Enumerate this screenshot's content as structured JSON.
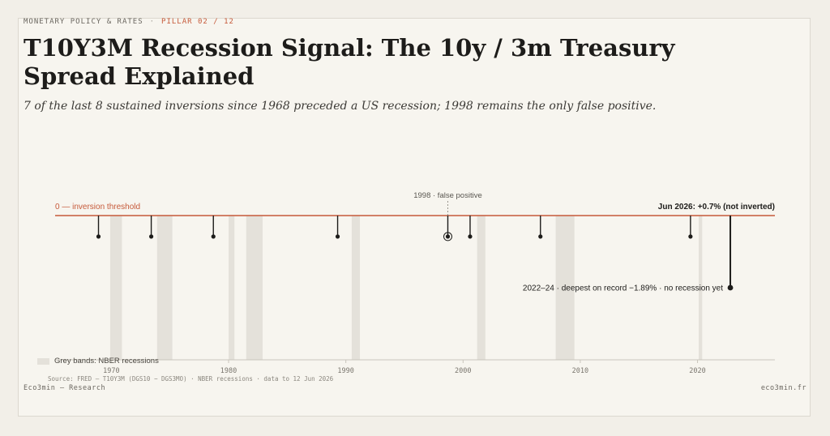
{
  "kicker": {
    "section": "MONETARY POLICY & RATES",
    "separator": "·",
    "pillar": "PILLAR 02 / 12"
  },
  "title": "T10Y3M Recession Signal: The 10y / 3m Treasury Spread Explained",
  "subtitle": "7 of the last 8 sustained inversions since 1968 preceded a US recession; 1998 remains the only false positive.",
  "colors": {
    "accent": "#c65a3a",
    "ink": "#1d1c1a",
    "band": "#e4e1da",
    "axis": "#c9c5bc"
  },
  "chart_data": {
    "type": "line",
    "xlim": [
      1965.2,
      2026.6
    ],
    "ylim": [
      -1.89,
      0
    ],
    "x_ticks": [
      1970,
      1980,
      1990,
      2000,
      2010,
      2020
    ],
    "threshold": {
      "value": 0,
      "label": "0 — inversion threshold"
    },
    "current": {
      "label": "Jun 2026: +0.7% (not inverted)"
    },
    "recessions": [
      [
        1969.9,
        1970.9
      ],
      [
        1973.9,
        1975.2
      ],
      [
        1980.0,
        1980.5
      ],
      [
        1981.5,
        1982.9
      ],
      [
        1990.5,
        1991.2
      ],
      [
        2001.2,
        2001.9
      ],
      [
        2007.9,
        2009.5
      ],
      [
        2020.1,
        2020.4
      ]
    ],
    "inversions": [
      {
        "x": 1968.9,
        "y": -0.55,
        "label": ""
      },
      {
        "x": 1973.4,
        "y": -0.55,
        "label": ""
      },
      {
        "x": 1978.7,
        "y": -0.55,
        "label": ""
      },
      {
        "x": 1989.3,
        "y": -0.55,
        "label": ""
      },
      {
        "x": 1998.7,
        "y": -0.55,
        "label": "1998 · false positive",
        "false_positive": true
      },
      {
        "x": 2000.6,
        "y": -0.55,
        "label": ""
      },
      {
        "x": 2006.6,
        "y": -0.55,
        "label": ""
      },
      {
        "x": 2019.4,
        "y": -0.55,
        "label": ""
      },
      {
        "x": 2022.8,
        "y": -1.89,
        "label": "2022–24 · deepest on record −1.89% · no recession yet"
      }
    ],
    "legend": "Grey bands: NBER recessions"
  },
  "source": "Source: FRED — T10Y3M (DGS10 − DGS3MO) · NBER recessions · data to 12 Jun 2026",
  "brand_left": "Eco3min — Research",
  "brand_right": "eco3min.fr"
}
